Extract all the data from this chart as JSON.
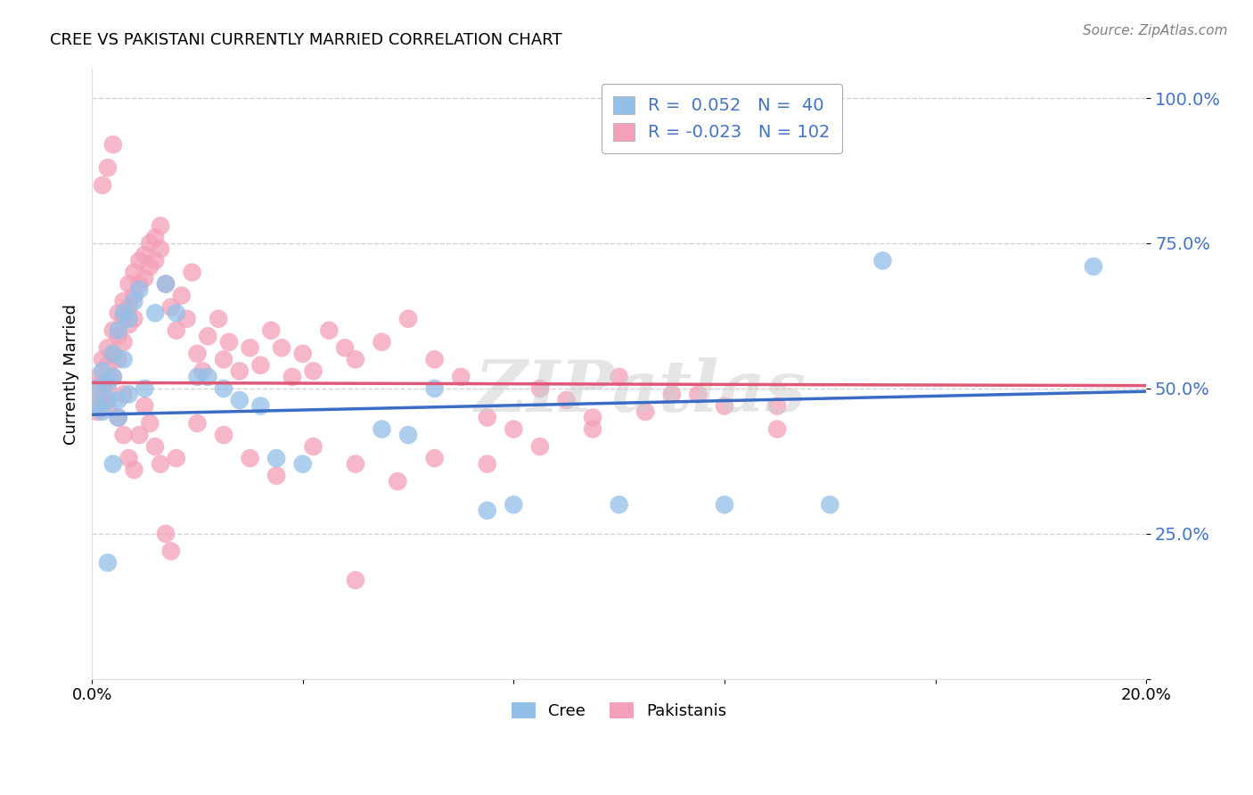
{
  "title": "CREE VS PAKISTANI CURRENTLY MARRIED CORRELATION CHART",
  "source": "Source: ZipAtlas.com",
  "ylabel": "Currently Married",
  "x_min": 0.0,
  "x_max": 0.2,
  "y_min": 0.0,
  "y_max": 1.05,
  "yticks": [
    0.0,
    0.25,
    0.5,
    0.75,
    1.0
  ],
  "ytick_labels": [
    "",
    "25.0%",
    "50.0%",
    "75.0%",
    "100.0%"
  ],
  "xticks": [
    0.0,
    0.04,
    0.08,
    0.12,
    0.16,
    0.2
  ],
  "xtick_labels": [
    "0.0%",
    "",
    "",
    "",
    "",
    "20.0%"
  ],
  "cree_R": 0.052,
  "cree_N": 40,
  "pakistani_R": -0.023,
  "pakistani_N": 102,
  "cree_color": "#92C0E8",
  "pakistani_color": "#F4A0B8",
  "cree_line_color": "#3B6CC5",
  "pakistani_line_color": "#E05878",
  "legend_text_color": "#4472C4",
  "watermark": "ZIPatlas",
  "background_color": "#FFFFFF",
  "cree_x": [
    0.001,
    0.001,
    0.002,
    0.002,
    0.003,
    0.003,
    0.004,
    0.004,
    0.005,
    0.005,
    0.005,
    0.006,
    0.006,
    0.007,
    0.007,
    0.008,
    0.009,
    0.01,
    0.012,
    0.014,
    0.016,
    0.02,
    0.022,
    0.025,
    0.028,
    0.032,
    0.035,
    0.04,
    0.055,
    0.06,
    0.065,
    0.075,
    0.08,
    0.1,
    0.12,
    0.14,
    0.003,
    0.004,
    0.15,
    0.19
  ],
  "cree_y": [
    0.5,
    0.47,
    0.53,
    0.46,
    0.51,
    0.48,
    0.52,
    0.56,
    0.48,
    0.45,
    0.6,
    0.63,
    0.55,
    0.62,
    0.49,
    0.65,
    0.67,
    0.5,
    0.63,
    0.68,
    0.63,
    0.52,
    0.52,
    0.5,
    0.48,
    0.47,
    0.38,
    0.37,
    0.43,
    0.42,
    0.5,
    0.29,
    0.3,
    0.3,
    0.3,
    0.3,
    0.2,
    0.37,
    0.72,
    0.71
  ],
  "pakistani_x": [
    0.001,
    0.001,
    0.001,
    0.002,
    0.002,
    0.002,
    0.003,
    0.003,
    0.003,
    0.003,
    0.004,
    0.004,
    0.004,
    0.005,
    0.005,
    0.005,
    0.006,
    0.006,
    0.006,
    0.007,
    0.007,
    0.007,
    0.008,
    0.008,
    0.008,
    0.009,
    0.009,
    0.01,
    0.01,
    0.011,
    0.011,
    0.012,
    0.012,
    0.013,
    0.013,
    0.014,
    0.015,
    0.016,
    0.017,
    0.018,
    0.019,
    0.02,
    0.021,
    0.022,
    0.024,
    0.025,
    0.026,
    0.028,
    0.03,
    0.032,
    0.034,
    0.036,
    0.038,
    0.04,
    0.042,
    0.045,
    0.048,
    0.05,
    0.055,
    0.06,
    0.065,
    0.07,
    0.075,
    0.08,
    0.085,
    0.09,
    0.095,
    0.1,
    0.11,
    0.12,
    0.13,
    0.002,
    0.003,
    0.004,
    0.005,
    0.006,
    0.007,
    0.008,
    0.009,
    0.01,
    0.011,
    0.012,
    0.013,
    0.014,
    0.015,
    0.016,
    0.02,
    0.025,
    0.03,
    0.035,
    0.042,
    0.05,
    0.058,
    0.065,
    0.075,
    0.085,
    0.095,
    0.105,
    0.115,
    0.13,
    0.006,
    0.05
  ],
  "pakistani_y": [
    0.52,
    0.49,
    0.46,
    0.55,
    0.51,
    0.48,
    0.57,
    0.54,
    0.5,
    0.47,
    0.6,
    0.56,
    0.52,
    0.63,
    0.59,
    0.55,
    0.65,
    0.62,
    0.58,
    0.68,
    0.64,
    0.61,
    0.7,
    0.66,
    0.62,
    0.72,
    0.68,
    0.73,
    0.69,
    0.75,
    0.71,
    0.76,
    0.72,
    0.78,
    0.74,
    0.68,
    0.64,
    0.6,
    0.66,
    0.62,
    0.7,
    0.56,
    0.53,
    0.59,
    0.62,
    0.55,
    0.58,
    0.53,
    0.57,
    0.54,
    0.6,
    0.57,
    0.52,
    0.56,
    0.53,
    0.6,
    0.57,
    0.55,
    0.58,
    0.62,
    0.55,
    0.52,
    0.45,
    0.43,
    0.5,
    0.48,
    0.45,
    0.52,
    0.49,
    0.47,
    0.43,
    0.85,
    0.88,
    0.92,
    0.45,
    0.42,
    0.38,
    0.36,
    0.42,
    0.47,
    0.44,
    0.4,
    0.37,
    0.25,
    0.22,
    0.38,
    0.44,
    0.42,
    0.38,
    0.35,
    0.4,
    0.37,
    0.34,
    0.38,
    0.37,
    0.4,
    0.43,
    0.46,
    0.49,
    0.47,
    0.49,
    0.17
  ],
  "cree_trend_x": [
    0.0,
    0.2
  ],
  "cree_trend_y": [
    0.455,
    0.495
  ],
  "pak_trend_x": [
    0.0,
    0.2
  ],
  "pak_trend_y": [
    0.51,
    0.505
  ]
}
